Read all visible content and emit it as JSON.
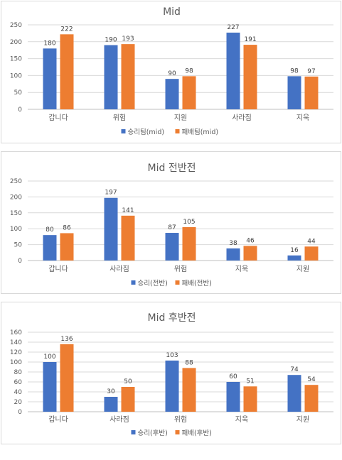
{
  "colors": {
    "win": "#4472C4",
    "lose": "#ED7D31",
    "grid": "#d9d9d9",
    "axis": "#bfbfbf"
  },
  "chart_data": [
    {
      "type": "bar",
      "title": "Mid",
      "categories": [
        "갑니다",
        "위험",
        "지원",
        "사라짐",
        "지욱"
      ],
      "series": [
        {
          "name": "승리팀(mid)",
          "values": [
            180,
            190,
            90,
            227,
            98
          ]
        },
        {
          "name": "패배팀(mid)",
          "values": [
            222,
            193,
            98,
            191,
            97
          ]
        }
      ],
      "ylim": [
        0,
        250
      ],
      "yticks": [
        0,
        50,
        100,
        150,
        200,
        250
      ],
      "grid": true,
      "legend": "bottom"
    },
    {
      "type": "bar",
      "title": "Mid 전반전",
      "categories": [
        "갑니다",
        "사라짐",
        "위험",
        "지욱",
        "지원"
      ],
      "series": [
        {
          "name": "승리(전반)",
          "values": [
            80,
            197,
            87,
            38,
            16
          ]
        },
        {
          "name": "패배(전반)",
          "values": [
            86,
            141,
            105,
            46,
            44
          ]
        }
      ],
      "ylim": [
        0,
        250
      ],
      "yticks": [
        0,
        50,
        100,
        150,
        200,
        250
      ],
      "grid": true,
      "legend": "bottom"
    },
    {
      "type": "bar",
      "title": "Mid 후반전",
      "categories": [
        "갑니다",
        "사라짐",
        "위험",
        "지욱",
        "지원"
      ],
      "series": [
        {
          "name": "승리(후반)",
          "values": [
            100,
            30,
            103,
            60,
            74
          ]
        },
        {
          "name": "패배(후반)",
          "values": [
            136,
            50,
            88,
            51,
            54
          ]
        }
      ],
      "ylim": [
        0,
        160
      ],
      "yticks": [
        0,
        20,
        40,
        60,
        80,
        100,
        120,
        140,
        160
      ],
      "grid": true,
      "legend": "bottom"
    }
  ]
}
